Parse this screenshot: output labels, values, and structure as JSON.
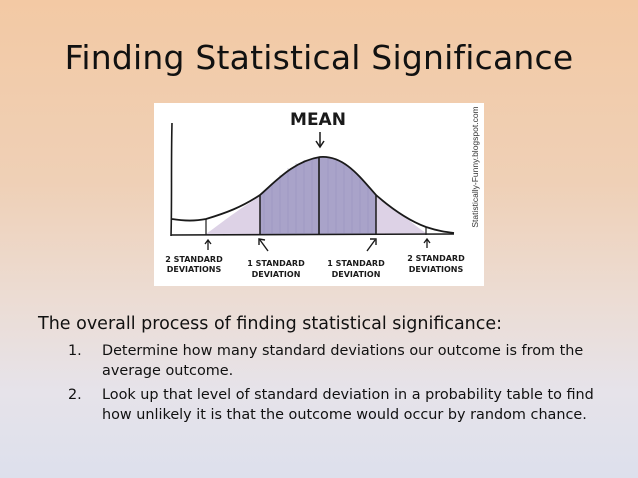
{
  "slide": {
    "title": "Finding Statistical Significance"
  },
  "figure": {
    "mean_label": "MEAN",
    "credit": "Statistically-Funny.blogspot.com",
    "labels": {
      "left_2sd_line1": "2 STANDARD",
      "left_2sd_line2": "DEVIATIONS",
      "left_1sd_line1": "1 STANDARD",
      "left_1sd_line2": "DEVIATION",
      "right_1sd_line1": "1 STANDARD",
      "right_1sd_line2": "DEVIATION",
      "right_2sd_line1": "2 STANDARD",
      "right_2sd_line2": "DEVIATIONS"
    },
    "colors": {
      "inner_band": "#a9a3c9",
      "outer_band": "#ddd2e6",
      "ink": "#1a1a1a"
    }
  },
  "content": {
    "intro": "The overall process of finding statistical significance:",
    "steps": [
      {
        "number": "1.",
        "text": "Determine how many standard deviations our outcome is from the average outcome."
      },
      {
        "number": "2.",
        "text": "Look up that level of standard deviation in a probability table to find how unlikely it is that the outcome would occur by random chance."
      }
    ]
  }
}
